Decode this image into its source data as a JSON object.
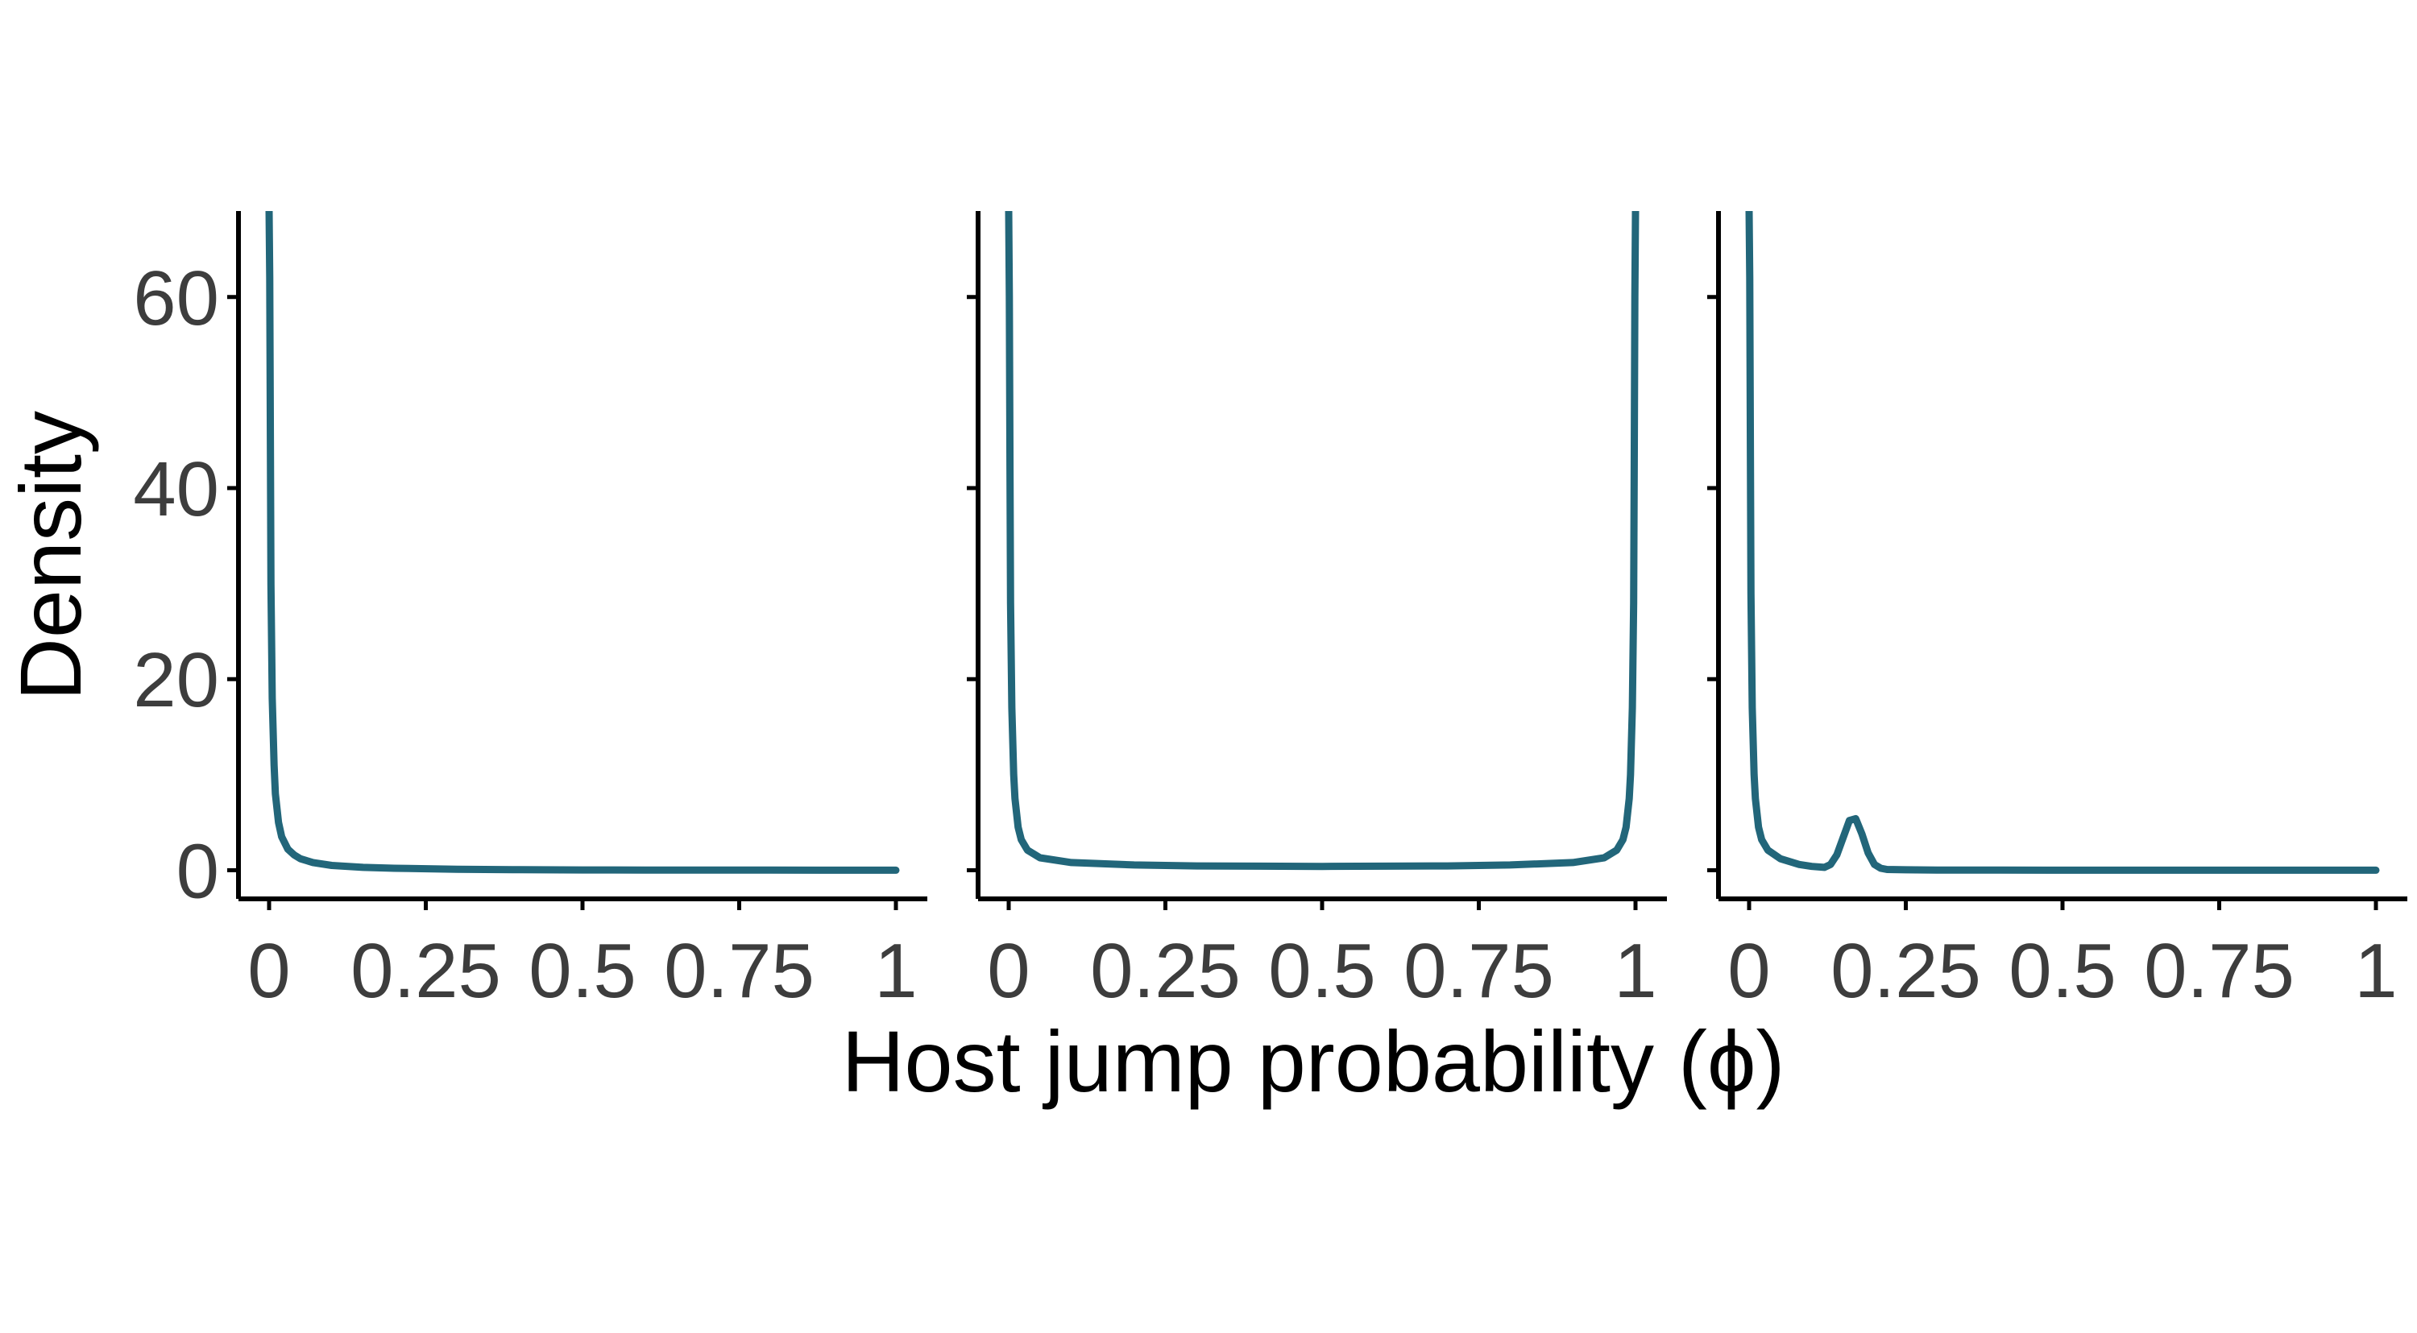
{
  "chart_data": {
    "type": "line",
    "layout": "facets",
    "line_color": "#22667a",
    "grid": false,
    "xlabel": "Host jump probability (ϕ)",
    "ylabel": "Density",
    "xlim": [
      0,
      1
    ],
    "ylim": [
      -3,
      69
    ],
    "x_ticks": [
      0,
      0.25,
      0.5,
      0.75,
      1
    ],
    "x_tick_labels": [
      "0",
      "0.25",
      "0.5",
      "0.75",
      "1"
    ],
    "y_ticks": [
      0,
      20,
      40,
      60
    ],
    "y_tick_labels": [
      "0",
      "20",
      "40",
      "60"
    ],
    "panels": [
      {
        "series": [
          {
            "x": [
              0.0,
              0.001,
              0.002,
              0.003,
              0.005,
              0.008,
              0.01,
              0.015,
              0.02,
              0.03,
              0.04,
              0.05,
              0.07,
              0.1,
              0.15,
              0.2,
              0.3,
              0.4,
              0.5,
              0.6,
              0.7,
              0.8,
              0.9,
              1.0
            ],
            "y": [
              69,
              62,
              45,
              30,
              18,
              11,
              8,
              5,
              3.5,
              2.2,
              1.6,
              1.2,
              0.8,
              0.5,
              0.3,
              0.2,
              0.1,
              0.05,
              0.03,
              0.02,
              0.01,
              0.01,
              0.0,
              0.0
            ]
          }
        ]
      },
      {
        "series": [
          {
            "x": [
              0.0,
              0.001,
              0.002,
              0.003,
              0.005,
              0.008,
              0.01,
              0.015,
              0.02,
              0.03,
              0.05,
              0.1,
              0.2,
              0.3,
              0.4,
              0.5,
              0.6,
              0.7,
              0.8,
              0.9,
              0.95,
              0.97,
              0.98,
              0.985,
              0.99,
              0.992,
              0.995,
              0.997,
              0.998,
              0.999,
              1.0
            ],
            "y": [
              69,
              60,
              42,
              28,
              17,
              10,
              7.5,
              4.5,
              3.2,
              2.1,
              1.3,
              0.8,
              0.55,
              0.45,
              0.42,
              0.4,
              0.42,
              0.45,
              0.55,
              0.8,
              1.3,
              2.1,
              3.2,
              4.5,
              7.5,
              10,
              17,
              28,
              42,
              60,
              69
            ]
          }
        ]
      },
      {
        "series": [
          {
            "x": [
              0.0,
              0.001,
              0.002,
              0.003,
              0.005,
              0.008,
              0.01,
              0.015,
              0.02,
              0.03,
              0.05,
              0.08,
              0.1,
              0.12,
              0.13,
              0.14,
              0.15,
              0.16,
              0.17,
              0.18,
              0.19,
              0.2,
              0.21,
              0.22,
              0.25,
              0.3,
              0.4,
              0.5,
              0.6,
              0.7,
              0.8,
              0.9,
              1.0
            ],
            "y": [
              69,
              62,
              44,
              29,
              17,
              10,
              7.5,
              4.5,
              3.2,
              2.1,
              1.2,
              0.6,
              0.4,
              0.3,
              0.6,
              1.6,
              3.4,
              5.2,
              5.4,
              3.8,
              1.8,
              0.6,
              0.2,
              0.08,
              0.04,
              0.02,
              0.01,
              0.0,
              0.0,
              0.0,
              0.0,
              0.0,
              0.0
            ]
          }
        ]
      }
    ]
  }
}
